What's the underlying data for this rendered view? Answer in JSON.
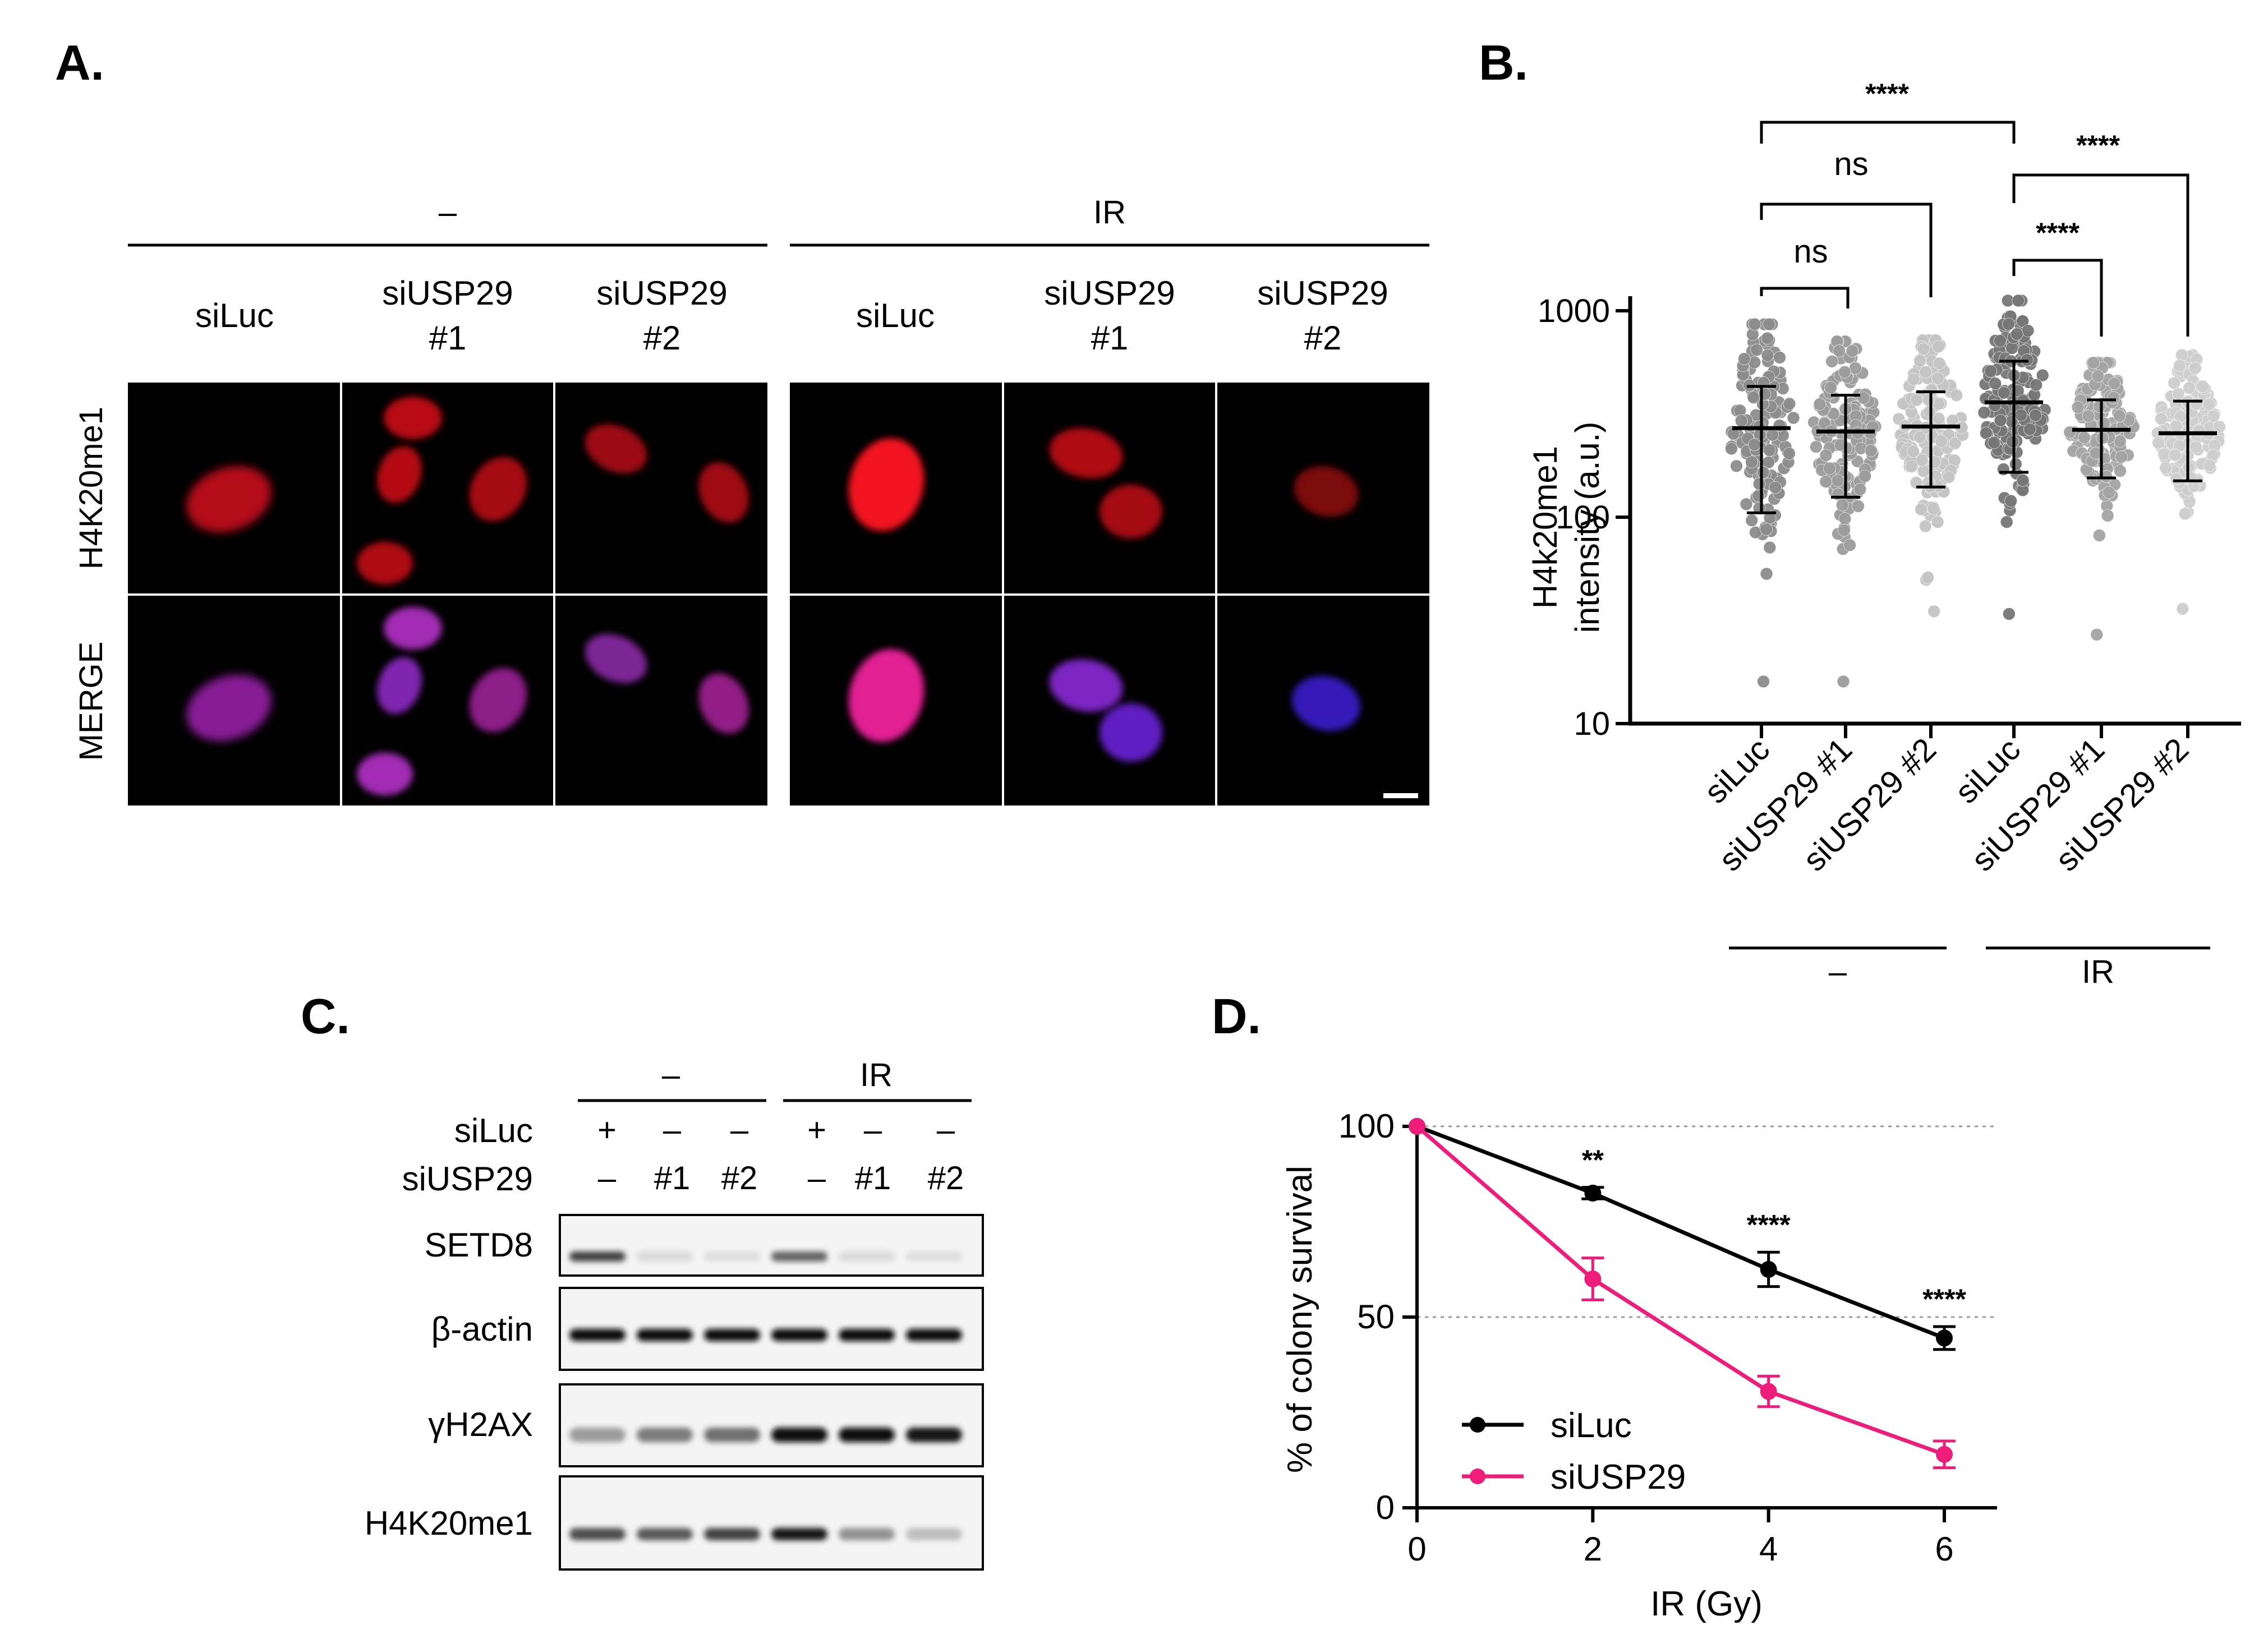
{
  "panels": {
    "A": {
      "letter": "A.",
      "group_labels": [
        "–",
        "IR"
      ],
      "conditions": [
        {
          "line1": "siLuc",
          "line2": ""
        },
        {
          "line1": "siUSP29",
          "line2": "#1"
        },
        {
          "line1": "siUSP29",
          "line2": "#2"
        },
        {
          "line1": "siLuc",
          "line2": ""
        },
        {
          "line1": "siUSP29",
          "line2": "#1"
        },
        {
          "line1": "siUSP29",
          "line2": "#2"
        }
      ],
      "row_labels": [
        "H4K20me1",
        "MERGE"
      ],
      "row_label_colors": [
        "#e00000",
        "#000000"
      ]
    },
    "B": {
      "letter": "B.",
      "ylabel_line1": "H4k20me1",
      "ylabel_line2": "intensity (a.u.)",
      "yticks": [
        "1000",
        "100",
        "10"
      ],
      "xticks": [
        "siLuc",
        "siUSP29 #1",
        "siUSP29 #2",
        "siLuc",
        "siUSP29 #1",
        "siUSP29 #2"
      ],
      "group_labels": [
        "–",
        "IR"
      ],
      "significance": [
        {
          "label": "****",
          "from": 1,
          "to": 4
        },
        {
          "label": "ns",
          "from": 1,
          "to": 3
        },
        {
          "label": "ns",
          "from": 1,
          "to": 2
        },
        {
          "label": "****",
          "from": 4,
          "to": 6
        },
        {
          "label": "****",
          "from": 4,
          "to": 5
        }
      ]
    },
    "C": {
      "letter": "C.",
      "group_labels": [
        "–",
        "IR"
      ],
      "row_siLuc_label": "siLuc",
      "row_siLuc_values": [
        "+",
        "–",
        "–",
        "+",
        "–",
        "–"
      ],
      "row_siUSP29_label": "siUSP29",
      "row_siUSP29_values": [
        "–",
        "#1",
        "#2",
        "–",
        "#1",
        "#2"
      ],
      "blots": [
        {
          "label": "SETD8",
          "intensity": [
            0.75,
            0.08,
            0.06,
            0.6,
            0.08,
            0.06
          ]
        },
        {
          "label": "β-actin",
          "intensity": [
            1,
            1,
            1,
            1,
            1,
            1
          ]
        },
        {
          "label": "γH2AX",
          "intensity": [
            0.35,
            0.5,
            0.55,
            1,
            1,
            0.95
          ]
        },
        {
          "label": "H4K20me1",
          "intensity": [
            0.7,
            0.65,
            0.75,
            0.95,
            0.4,
            0.2
          ]
        }
      ]
    },
    "D": {
      "letter": "D.",
      "legend": [
        "siLuc",
        "siUSP29"
      ],
      "annotations": [
        "**",
        "****",
        "****"
      ]
    }
  },
  "chart_data": [
    {
      "type": "scatter",
      "panel": "B",
      "title": "",
      "ylabel": "H4k20me1 intensity (a.u.)",
      "yscale": "log",
      "ylim": [
        10,
        1000
      ],
      "categories": [
        "siLuc",
        "siUSP29 #1",
        "siUSP29 #2",
        "siLuc",
        "siUSP29 #1",
        "siUSP29 #2"
      ],
      "groups": [
        "–",
        "–",
        "–",
        "IR",
        "IR",
        "IR"
      ],
      "mean": [
        270,
        260,
        275,
        360,
        265,
        255
      ],
      "sd_upper": [
        430,
        390,
        405,
        570,
        370,
        365
      ],
      "sd_lower": [
        105,
        125,
        140,
        165,
        155,
        150
      ],
      "range_max": [
        860,
        710,
        720,
        1120,
        560,
        610
      ],
      "range_min": [
        16,
        16,
        35,
        34,
        27,
        36
      ],
      "point_colors": [
        "#8c8c8c",
        "#9c9c9c",
        "#c4c4c4",
        "#767676",
        "#a3a3a3",
        "#cdcdcd"
      ],
      "grid": false
    },
    {
      "type": "line",
      "panel": "D",
      "xlabel": "IR (Gy)",
      "ylabel": "% of colony survival",
      "x": [
        0,
        2,
        4,
        6
      ],
      "xticks": [
        "0",
        "2",
        "4",
        "6"
      ],
      "yticks": [
        "0",
        "50",
        "100"
      ],
      "xlim": [
        0,
        6.6
      ],
      "ylim": [
        0,
        100
      ],
      "series": [
        {
          "name": "siLuc",
          "color": "#000000",
          "values": [
            100,
            82.5,
            62.5,
            44.5
          ],
          "err": [
            0,
            1.5,
            4.5,
            3
          ]
        },
        {
          "name": "siUSP29",
          "color": "#ee1c7a",
          "values": [
            100,
            60,
            30.5,
            14
          ],
          "err": [
            0,
            5.5,
            4,
            3.5
          ]
        }
      ],
      "significance": [
        "",
        "**",
        "****",
        "****"
      ],
      "legend_position": "bottom-left",
      "grid": "dotted horizontal at 50 and 100"
    }
  ]
}
